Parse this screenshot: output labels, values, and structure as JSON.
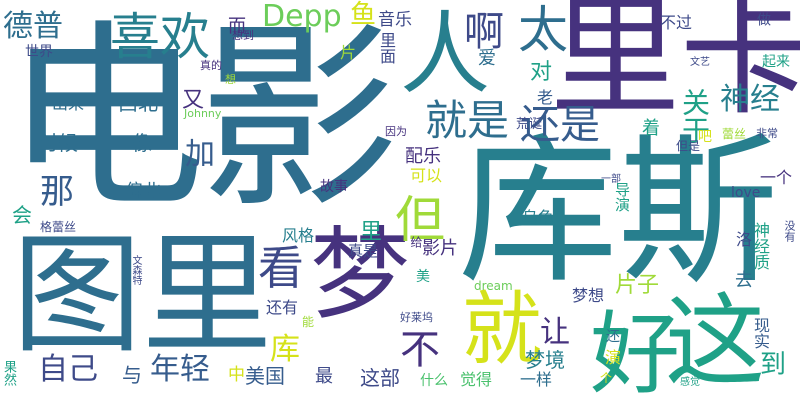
{
  "cloud": {
    "background": "#ffffff",
    "palette": {
      "dark_purple": "#46327e",
      "indigo": "#3e4a89",
      "blue": "#365c8d",
      "slate": "#2e6e8e",
      "teal": "#277f8e",
      "green_teal": "#1fa187",
      "green": "#4ac16d",
      "lime": "#a0da39",
      "yellow": "#fde725"
    },
    "words": [
      {
        "text": "电影",
        "color": "#2e6e8e"
      },
      {
        "text": "库斯",
        "color": "#277f8e"
      },
      {
        "text": "里卡",
        "color": "#46327e"
      },
      {
        "text": "图里",
        "color": "#2e6e8e"
      },
      {
        "text": "梦",
        "color": "#46327e"
      },
      {
        "text": "好",
        "color": "#1fa187"
      },
      {
        "text": "这",
        "color": "#1fa187"
      },
      {
        "text": "人",
        "color": "#277f8e"
      },
      {
        "text": "就",
        "color": "#d5e21a"
      },
      {
        "text": "喜欢",
        "color": "#277f8e"
      },
      {
        "text": "德普",
        "color": "#2e6e8e"
      },
      {
        "text": "Depp",
        "color": "#6ccd5a"
      },
      {
        "text": "鱼",
        "color": "#d5e21a"
      },
      {
        "text": "音乐",
        "color": "#3e4a89"
      },
      {
        "text": "啊",
        "color": "#3e4a89"
      },
      {
        "text": "太",
        "color": "#2e6e8e"
      },
      {
        "text": "不过",
        "color": "#3e4a89"
      },
      {
        "text": "做",
        "color": "#3e4a89"
      },
      {
        "text": "就是",
        "color": "#2e6e8e"
      },
      {
        "text": "还是",
        "color": "#365c8d"
      },
      {
        "text": "神经",
        "color": "#277f8e"
      },
      {
        "text": "关于",
        "color": "#1fa187"
      },
      {
        "text": "但",
        "color": "#a0da39"
      },
      {
        "text": "看",
        "color": "#3e4a89"
      },
      {
        "text": "那",
        "color": "#365c8d"
      },
      {
        "text": "又",
        "color": "#46327e"
      },
      {
        "text": "加",
        "color": "#365c8d"
      },
      {
        "text": "库",
        "color": "#d5e21a"
      },
      {
        "text": "不",
        "color": "#46327e"
      },
      {
        "text": "让",
        "color": "#46327e"
      },
      {
        "text": "自己",
        "color": "#3e4a89"
      },
      {
        "text": "与",
        "color": "#365c8d"
      },
      {
        "text": "年轻",
        "color": "#365c8d"
      },
      {
        "text": "中",
        "color": "#d5e21a"
      },
      {
        "text": "美国",
        "color": "#365c8d"
      },
      {
        "text": "最",
        "color": "#3e4a89"
      },
      {
        "text": "这部",
        "color": "#3e4a89"
      },
      {
        "text": "梦境",
        "color": "#277f8e"
      },
      {
        "text": "到",
        "color": "#1fa187"
      },
      {
        "text": "现实",
        "color": "#365c8d"
      },
      {
        "text": "片子",
        "color": "#a0da39"
      },
      {
        "text": "梦想",
        "color": "#3e4a89"
      },
      {
        "text": "一样",
        "color": "#2e6e8e"
      },
      {
        "text": "什么",
        "color": "#4ac16d"
      },
      {
        "text": "觉得",
        "color": "#4ac16d"
      },
      {
        "text": "配乐",
        "color": "#46327e"
      },
      {
        "text": "可以",
        "color": "#d5e21a"
      },
      {
        "text": "故事",
        "color": "#46327e"
      },
      {
        "text": "偏北",
        "color": "#2e6e8e"
      },
      {
        "text": "时候",
        "color": "#2e6e8e"
      },
      {
        "text": "像",
        "color": "#2e6e8e"
      },
      {
        "text": "西北",
        "color": "#2e6e8e"
      },
      {
        "text": "出来",
        "color": "#2e6e8e"
      },
      {
        "text": "世界",
        "color": "#3e4a89"
      },
      {
        "text": "而",
        "color": "#46327e"
      },
      {
        "text": "想到",
        "color": "#46327e"
      },
      {
        "text": "里面",
        "color": "#3e4a89"
      },
      {
        "text": "片",
        "color": "#a0da39"
      },
      {
        "text": "爱",
        "color": "#2e6e8e"
      },
      {
        "text": "对",
        "color": "#1fa187"
      },
      {
        "text": "老",
        "color": "#365c8d"
      },
      {
        "text": "着",
        "color": "#1fa187"
      },
      {
        "text": "吧",
        "color": "#d5e21a"
      },
      {
        "text": "蕾丝",
        "color": "#a0da39"
      },
      {
        "text": "非常",
        "color": "#3e4a89"
      },
      {
        "text": "但是",
        "color": "#3e4a89"
      },
      {
        "text": "一个",
        "color": "#46327e"
      },
      {
        "text": "love",
        "color": "#3e4a89"
      },
      {
        "text": "一部",
        "color": "#3e4a89"
      },
      {
        "text": "导演",
        "color": "#1fa187"
      },
      {
        "text": "神经质",
        "color": "#1fa187"
      },
      {
        "text": "去",
        "color": "#2e6e8e"
      },
      {
        "text": "洛",
        "color": "#3e4a89"
      },
      {
        "text": "乌龟",
        "color": "#277f8e"
      },
      {
        "text": "影片",
        "color": "#46327e"
      },
      {
        "text": "给",
        "color": "#46327e"
      },
      {
        "text": "真是",
        "color": "#3e4a89"
      },
      {
        "text": "里",
        "color": "#1fa187"
      },
      {
        "text": "风格",
        "color": "#277f8e"
      },
      {
        "text": "会",
        "color": "#1fa187"
      },
      {
        "text": "格蕾丝",
        "color": "#3e4a89"
      },
      {
        "text": "还有",
        "color": "#3e4a89"
      },
      {
        "text": "美",
        "color": "#1fa187"
      },
      {
        "text": "能",
        "color": "#a0da39"
      },
      {
        "text": "dream",
        "color": "#6ccd5a"
      },
      {
        "text": "好莱坞",
        "color": "#3e4a89"
      },
      {
        "text": "文森特",
        "color": "#3e4a89"
      },
      {
        "text": "果然",
        "color": "#1fa187"
      },
      {
        "text": "还",
        "color": "#2e6e8e"
      },
      {
        "text": "演",
        "color": "#d5e21a"
      },
      {
        "text": "个",
        "color": "#d5e21a"
      },
      {
        "text": "感觉",
        "color": "#1fa187"
      },
      {
        "text": "没有",
        "color": "#3e4a89"
      },
      {
        "text": "文艺",
        "color": "#3e4a89"
      },
      {
        "text": "起来",
        "color": "#1fa187"
      },
      {
        "text": "荒诞",
        "color": "#3e4a89"
      },
      {
        "text": "因为",
        "color": "#46327e"
      },
      {
        "text": "真的",
        "color": "#46327e"
      },
      {
        "text": "想",
        "color": "#a0da39"
      },
      {
        "text": "Johnny",
        "color": "#6ccd5a"
      }
    ]
  }
}
